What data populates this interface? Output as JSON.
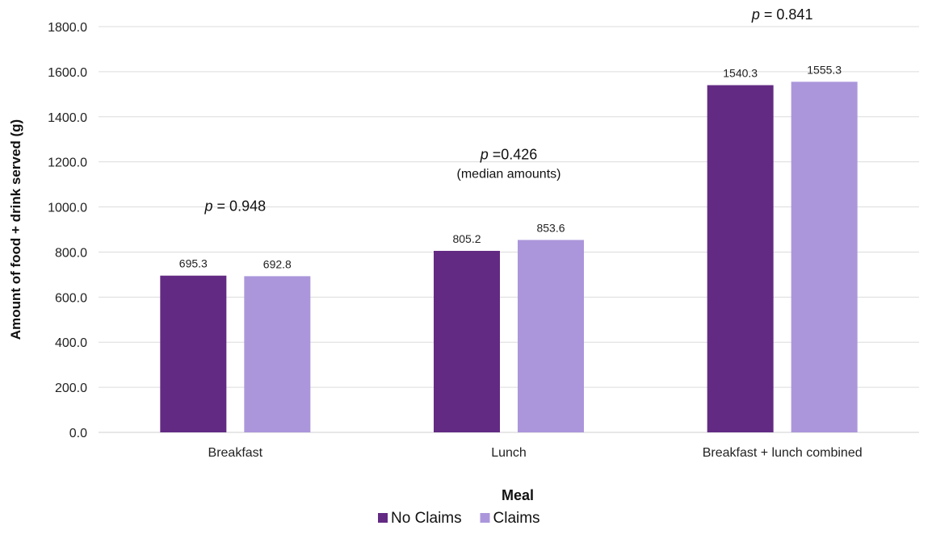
{
  "chart_data": {
    "type": "bar",
    "title": "",
    "xlabel": "Meal",
    "ylabel": "Amount of food + drink served (g)",
    "ylim": [
      0,
      1800
    ],
    "yticks": [
      0,
      200,
      400,
      600,
      800,
      1000,
      1200,
      1400,
      1600,
      1800
    ],
    "ytick_labels": [
      "0.0",
      "200.0",
      "400.0",
      "600.0",
      "800.0",
      "1000.0",
      "1200.0",
      "1400.0",
      "1600.0",
      "1800.0"
    ],
    "categories": [
      "Breakfast",
      "Lunch",
      "Breakfast + lunch combined"
    ],
    "series": [
      {
        "name": "No Claims",
        "values": [
          695.3,
          805.2,
          1540.3
        ],
        "labels": [
          "695.3",
          "805.2",
          "1540.3"
        ],
        "color": "#632A83"
      },
      {
        "name": "Claims",
        "values": [
          692.8,
          853.6,
          1555.3
        ],
        "labels": [
          "692.8",
          "853.6",
          "1555.3"
        ],
        "color": "#AB96DB"
      }
    ],
    "grid": true,
    "legend_position": "bottom",
    "annotations": [
      {
        "category": "Breakfast",
        "p_symbol": "p",
        "text": " =  0.948",
        "sub": ""
      },
      {
        "category": "Lunch",
        "p_symbol": "p",
        "text": " =0.426",
        "sub": "(median amounts)"
      },
      {
        "category": "Breakfast + lunch combined",
        "p_symbol": "p",
        "text": " = 0.841",
        "sub": ""
      }
    ]
  }
}
